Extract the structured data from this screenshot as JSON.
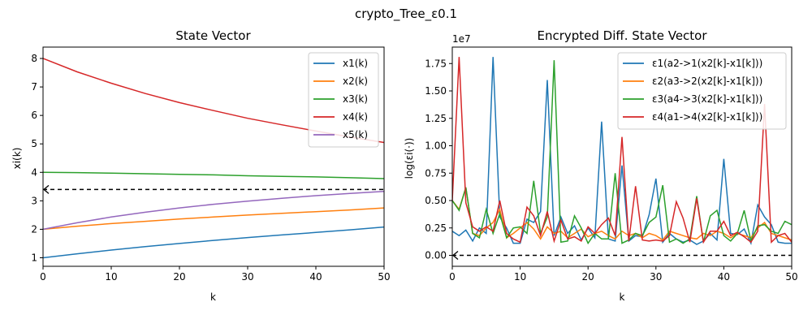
{
  "figure": {
    "suptitle": "crypto_Tree_ε0.1"
  },
  "chart_data": [
    {
      "type": "line",
      "title": "State Vector",
      "xlabel": "k",
      "ylabel": "xi(k)",
      "xlim": [
        0,
        50
      ],
      "ylim": [
        0.7,
        8.4
      ],
      "xticks": [
        0,
        10,
        20,
        30,
        40,
        50
      ],
      "yticks": [
        1,
        2,
        3,
        4,
        5,
        6,
        7,
        8
      ],
      "legend_position": "top-right",
      "x": [
        0,
        5,
        10,
        15,
        20,
        25,
        30,
        35,
        40,
        45,
        50
      ],
      "series": [
        {
          "name": "x1(k)",
          "color": "#1f77b4",
          "values": [
            1.0,
            1.14,
            1.27,
            1.39,
            1.5,
            1.61,
            1.71,
            1.8,
            1.89,
            1.98,
            2.08
          ]
        },
        {
          "name": "x2(k)",
          "color": "#ff7f0e",
          "values": [
            2.0,
            2.11,
            2.2,
            2.28,
            2.36,
            2.43,
            2.5,
            2.56,
            2.62,
            2.68,
            2.75
          ]
        },
        {
          "name": "x3(k)",
          "color": "#2ca02c",
          "values": [
            4.0,
            3.99,
            3.97,
            3.95,
            3.93,
            3.91,
            3.88,
            3.86,
            3.84,
            3.81,
            3.78
          ]
        },
        {
          "name": "x4(k)",
          "color": "#d62728",
          "values": [
            8.0,
            7.53,
            7.13,
            6.77,
            6.45,
            6.17,
            5.9,
            5.67,
            5.45,
            5.24,
            5.05
          ]
        },
        {
          "name": "x5(k)",
          "color": "#9467bd",
          "values": [
            2.0,
            2.23,
            2.43,
            2.6,
            2.75,
            2.88,
            2.99,
            3.09,
            3.18,
            3.26,
            3.33
          ]
        }
      ],
      "reference_line": {
        "y": 3.4,
        "color": "#000000",
        "style": "dashed",
        "marker": "<"
      }
    },
    {
      "type": "line",
      "title": "Encrypted Diff. State Vector",
      "xlabel": "k",
      "ylabel": "log(εi(·))",
      "scale_label": "1e7",
      "xlim": [
        0,
        50
      ],
      "ylim": [
        -0.1,
        1.9
      ],
      "xticks": [
        0,
        10,
        20,
        30,
        40,
        50
      ],
      "yticks": [
        0.0,
        0.25,
        0.5,
        0.75,
        1.0,
        1.25,
        1.5,
        1.75
      ],
      "ytick_labels": [
        "0.00",
        "0.25",
        "0.50",
        "0.75",
        "1.00",
        "1.25",
        "1.50",
        "1.75"
      ],
      "legend_position": "top-right",
      "x": [
        0,
        1,
        2,
        3,
        4,
        5,
        6,
        7,
        8,
        9,
        10,
        11,
        12,
        13,
        14,
        15,
        16,
        17,
        18,
        19,
        20,
        21,
        22,
        23,
        24,
        25,
        26,
        27,
        28,
        29,
        30,
        31,
        32,
        33,
        34,
        35,
        36,
        37,
        38,
        39,
        40,
        41,
        42,
        43,
        44,
        45,
        46,
        47,
        48,
        49,
        50
      ],
      "series": [
        {
          "name": "ε1(a2->1(x2[k]-x1[k]))",
          "color": "#1f77b4",
          "values": [
            0.22,
            0.18,
            0.23,
            0.13,
            0.25,
            0.2,
            1.81,
            0.35,
            0.25,
            0.11,
            0.11,
            0.33,
            0.3,
            0.4,
            1.6,
            0.18,
            0.35,
            0.2,
            0.27,
            0.14,
            0.25,
            0.16,
            1.22,
            0.15,
            0.13,
            0.82,
            0.13,
            0.18,
            0.17,
            0.37,
            0.7,
            0.12,
            0.2,
            0.15,
            0.12,
            0.14,
            0.1,
            0.13,
            0.2,
            0.14,
            0.88,
            0.2,
            0.19,
            0.24,
            0.11,
            0.46,
            0.35,
            0.28,
            0.12,
            0.11,
            0.11
          ]
        },
        {
          "name": "ε2(a3->2(x2[k]-x1[k]))",
          "color": "#ff7f0e",
          "values": [
            0.5,
            0.42,
            0.62,
            0.2,
            0.18,
            0.25,
            0.3,
            0.42,
            0.16,
            0.2,
            0.25,
            0.3,
            0.24,
            0.15,
            0.26,
            0.2,
            0.22,
            0.16,
            0.2,
            0.24,
            0.17,
            0.2,
            0.22,
            0.18,
            0.15,
            0.22,
            0.18,
            0.2,
            0.16,
            0.2,
            0.18,
            0.14,
            0.22,
            0.2,
            0.18,
            0.16,
            0.15,
            0.2,
            0.18,
            0.22,
            0.2,
            0.16,
            0.2,
            0.18,
            0.16,
            0.25,
            0.3,
            0.2,
            0.18,
            0.16,
            0.14
          ]
        },
        {
          "name": "ε3(a4->3(x2[k]-x1[k]))",
          "color": "#2ca02c",
          "values": [
            0.5,
            0.41,
            0.62,
            0.2,
            0.16,
            0.42,
            0.2,
            0.38,
            0.16,
            0.25,
            0.26,
            0.2,
            0.68,
            0.2,
            0.35,
            1.78,
            0.12,
            0.13,
            0.36,
            0.25,
            0.11,
            0.2,
            0.15,
            0.15,
            0.75,
            0.11,
            0.14,
            0.2,
            0.18,
            0.3,
            0.35,
            0.64,
            0.12,
            0.15,
            0.11,
            0.15,
            0.54,
            0.12,
            0.36,
            0.41,
            0.18,
            0.13,
            0.2,
            0.41,
            0.13,
            0.27,
            0.28,
            0.22,
            0.2,
            0.31,
            0.28
          ]
        },
        {
          "name": "ε4(a1->4(x2[k]-x1[k]))",
          "color": "#d62728",
          "values": [
            0.5,
            1.81,
            0.48,
            0.26,
            0.22,
            0.26,
            0.22,
            0.5,
            0.2,
            0.15,
            0.12,
            0.44,
            0.36,
            0.18,
            0.4,
            0.13,
            0.32,
            0.15,
            0.17,
            0.13,
            0.26,
            0.2,
            0.28,
            0.34,
            0.18,
            1.08,
            0.13,
            0.63,
            0.14,
            0.13,
            0.14,
            0.13,
            0.18,
            0.49,
            0.34,
            0.12,
            0.52,
            0.12,
            0.22,
            0.22,
            0.31,
            0.18,
            0.21,
            0.17,
            0.12,
            0.22,
            1.38,
            0.12,
            0.18,
            0.2,
            0.12
          ]
        }
      ],
      "reference_line": {
        "y": 0.0,
        "color": "#000000",
        "style": "dashed",
        "marker": "<"
      }
    }
  ]
}
